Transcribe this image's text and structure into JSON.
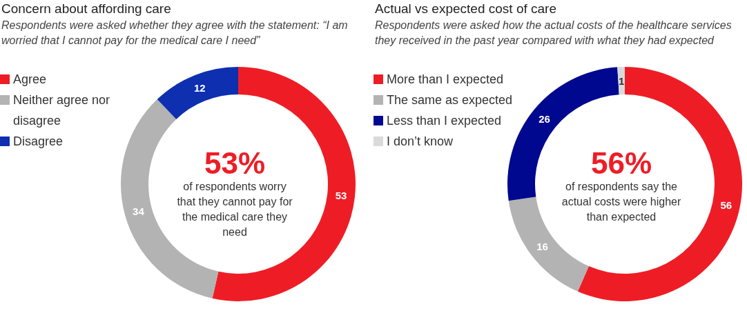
{
  "chart_data": [
    {
      "type": "donut",
      "title": "Concern about affording care",
      "subtitle": "Respondents were asked whether they agree with the statement: “I am worried that I cannot pay for the medical care I need”",
      "categories": [
        "Agree",
        "Neither agree nor disagree",
        "Disagree"
      ],
      "values": [
        53,
        34,
        12
      ],
      "colors": [
        "#ee1d25",
        "#b3b3b3",
        "#0d2fb0"
      ],
      "data_labels": true,
      "legend": "top left",
      "annotations": [
        "53%",
        "of respondents worry that they cannot pay for the medical care they need"
      ]
    },
    {
      "type": "donut",
      "title": "Actual vs expected cost of care",
      "subtitle": "Respondents were asked how the actual costs of the healthcare services they received in the past year compared with what they had expected",
      "categories": [
        "More than I expected",
        "The same as expected",
        "Less than I expected",
        "I don’t know"
      ],
      "values": [
        56,
        16,
        26,
        1
      ],
      "colors": [
        "#ee1d25",
        "#b3b3b3",
        "#00088f",
        "#dadada"
      ],
      "data_labels": true,
      "legend": "top left",
      "annotations": [
        "56%",
        "of respondents say the actual costs were higher than expected"
      ]
    }
  ]
}
